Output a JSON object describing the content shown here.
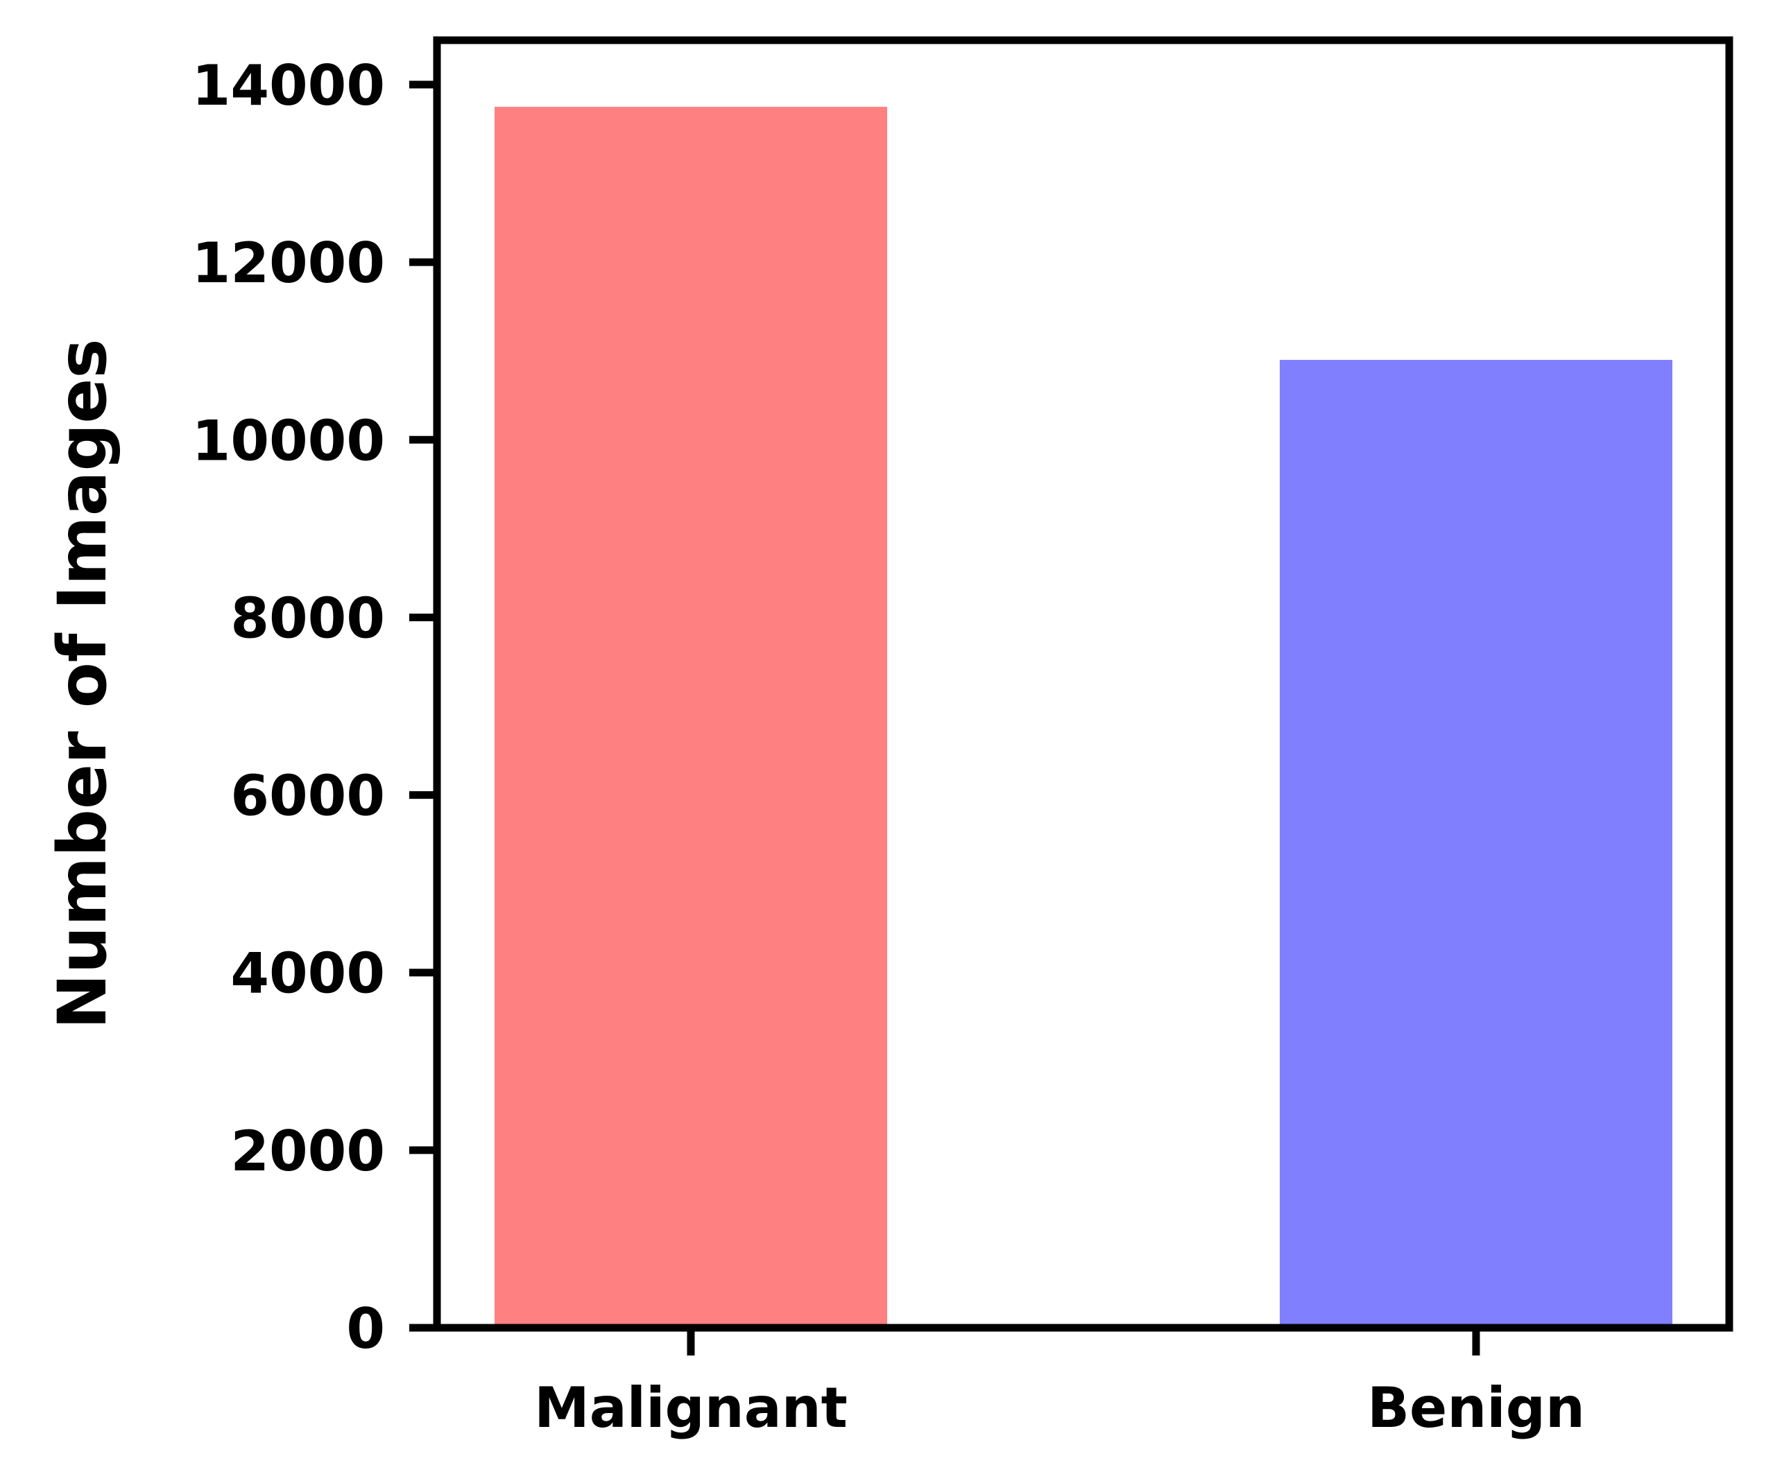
{
  "chart_data": {
    "type": "bar",
    "categories": [
      "Malignant",
      "Benign"
    ],
    "values": [
      13750,
      10900
    ],
    "colors": [
      "#ff8080",
      "#8080ff"
    ],
    "title": "",
    "xlabel": "",
    "ylabel": "Number of Images",
    "ylim": [
      0,
      14500
    ],
    "yticks": [
      0,
      2000,
      4000,
      6000,
      8000,
      10000,
      12000,
      14000
    ],
    "ytick_labels": [
      "0",
      "2000",
      "4000",
      "6000",
      "8000",
      "10000",
      "12000",
      "14000"
    ],
    "grid": false,
    "legend": "none"
  }
}
